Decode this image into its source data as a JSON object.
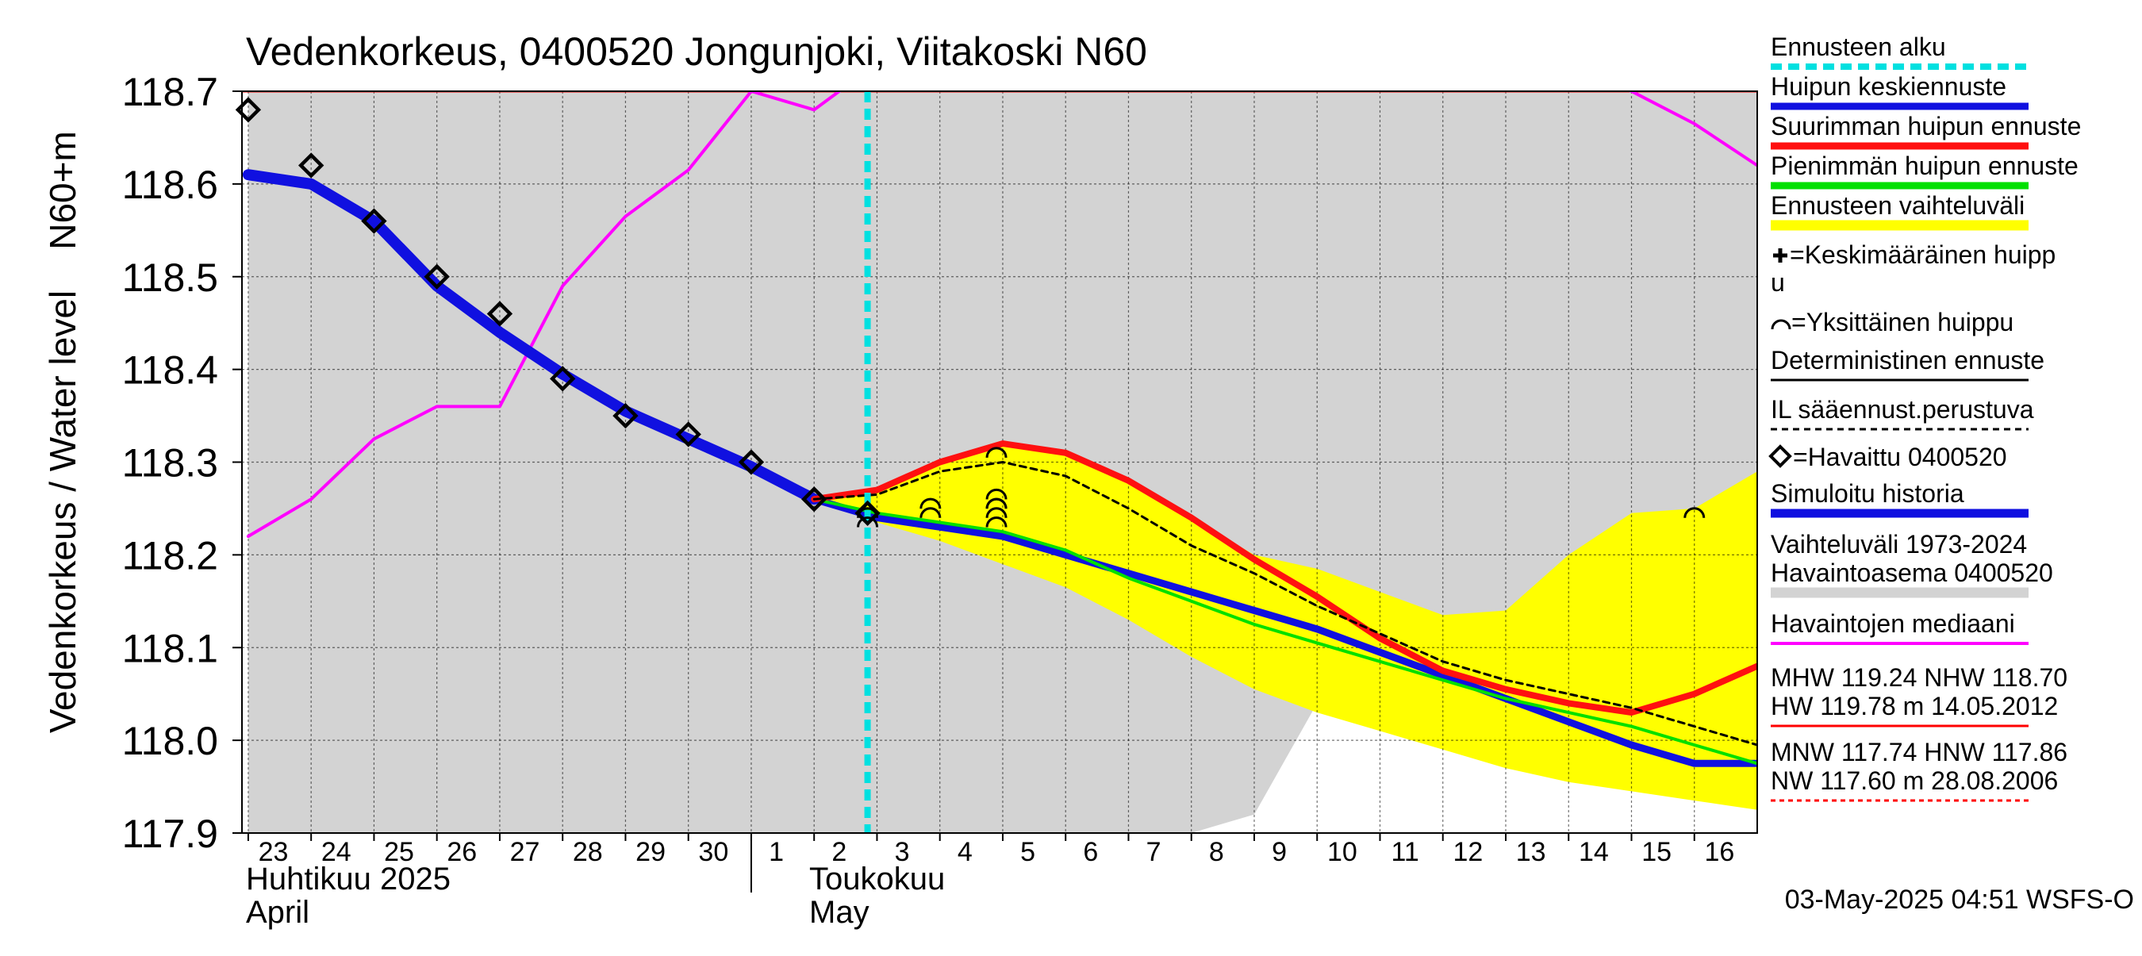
{
  "chart_data": {
    "type": "line",
    "title": "Vedenkorkeus, 0400520 Jongunjoki, Viitakoski N60",
    "ylabel_left": "Vedenkorkeus / Water level",
    "ylabel_right": "N60+m",
    "ylim": [
      117.9,
      118.7
    ],
    "yticks": [
      "117.9",
      "118.0",
      "118.1",
      "118.2",
      "118.3",
      "118.4",
      "118.5",
      "118.6",
      "118.7"
    ],
    "x_start_day": 23,
    "x_end_day": 47,
    "xticks": [
      "23",
      "24",
      "25",
      "26",
      "27",
      "28",
      "29",
      "30",
      "1",
      "2",
      "3",
      "4",
      "5",
      "6",
      "7",
      "8",
      "9",
      "10",
      "11",
      "12",
      "13",
      "14",
      "15",
      "16"
    ],
    "month_labels": {
      "april_fi": "Huhtikuu 2025",
      "april_en": "April",
      "may_fi": "Toukokuu",
      "may_en": "May"
    },
    "forecast_start": 32.85,
    "grid": true,
    "legend_position": "right",
    "legend": [
      "Ennusteen alku",
      "Huipun keskiennuste",
      "Suurimman huipun ennuste",
      "Pienimmän huipun ennuste",
      "Ennusteen vaihteluväli",
      "=Keskimääräinen huipp",
      "u",
      "=Yksittäinen huippu",
      "Deterministinen ennuste",
      "IL sääennust.perustuva",
      "=Havaittu 0400520",
      "Simuloitu historia",
      "Vaihteluväli 1973-2024",
      " Havaintoasema 0400520",
      "Havaintojen mediaani"
    ],
    "stats": {
      "line1": "MHW 119.24 NHW 118.70",
      "line2": "HW 119.78 m 14.05.2012",
      "line3": "MNW 117.74 HNW 117.86",
      "line4": "NW 117.60 m 28.08.2006"
    },
    "timestamp": "03-May-2025 04:51 WSFS-O",
    "colors": {
      "forecast_start": "#00e0e0",
      "mean_peak": "#1010e0",
      "max_peak": "#ff1010",
      "min_peak": "#00e000",
      "forecast_range": "#ffff00",
      "deterministic": "#000000",
      "observed": "#000000",
      "simulated": "#1010e0",
      "historical_range": "#d3d3d3",
      "median": "#ff00ff"
    },
    "series": [
      {
        "name": "Havaittu 0400520",
        "x": [
          23,
          24,
          25,
          26,
          27,
          28,
          29,
          30,
          31,
          32,
          32.85
        ],
        "y": [
          118.68,
          118.62,
          118.56,
          118.5,
          118.46,
          118.39,
          118.35,
          118.33,
          118.3,
          118.26,
          118.245
        ]
      },
      {
        "name": "Simuloitu historia",
        "x": [
          23,
          24,
          25,
          26,
          27,
          28,
          29,
          30,
          31,
          32
        ],
        "y": [
          118.61,
          118.6,
          118.56,
          118.49,
          118.44,
          118.395,
          118.355,
          118.325,
          118.295,
          118.26
        ]
      },
      {
        "name": "Huipun keskiennuste",
        "x": [
          32,
          33,
          34,
          35,
          36,
          37,
          38,
          39,
          40,
          41,
          42,
          43,
          44,
          45,
          46,
          47
        ],
        "y": [
          118.26,
          118.24,
          118.23,
          118.22,
          118.2,
          118.18,
          118.16,
          118.14,
          118.12,
          118.095,
          118.07,
          118.045,
          118.02,
          117.995,
          117.975,
          117.975
        ]
      },
      {
        "name": "Suurimman huipun ennuste",
        "x": [
          32,
          33,
          34,
          35,
          36,
          37,
          38,
          39,
          40,
          41,
          42,
          43,
          44,
          45,
          46,
          47
        ],
        "y": [
          118.26,
          118.27,
          118.3,
          118.32,
          118.31,
          118.28,
          118.24,
          118.195,
          118.155,
          118.11,
          118.075,
          118.055,
          118.04,
          118.03,
          118.05,
          118.08
        ]
      },
      {
        "name": "Pienimmän huipun ennuste",
        "x": [
          32,
          33,
          34,
          35,
          36,
          37,
          38,
          39,
          40,
          41,
          42,
          43,
          44,
          45,
          46,
          47
        ],
        "y": [
          118.26,
          118.245,
          118.235,
          118.225,
          118.205,
          118.175,
          118.15,
          118.125,
          118.105,
          118.085,
          118.065,
          118.045,
          118.03,
          118.015,
          117.995,
          117.975
        ]
      },
      {
        "name": "Deterministinen ennuste",
        "x": [
          32,
          33,
          34,
          35,
          36,
          37,
          38,
          39,
          40,
          41,
          42,
          43,
          44,
          45,
          46,
          47
        ],
        "y": [
          118.26,
          118.265,
          118.29,
          118.3,
          118.285,
          118.25,
          118.21,
          118.18,
          118.145,
          118.115,
          118.085,
          118.065,
          118.05,
          118.035,
          118.015,
          117.995
        ]
      },
      {
        "name": "Havaintojen mediaani",
        "x": [
          23,
          24,
          25,
          26,
          27,
          28,
          29,
          30,
          31,
          32,
          33,
          43.8,
          45,
          46,
          47
        ],
        "y": [
          118.22,
          118.26,
          118.325,
          118.36,
          118.36,
          118.49,
          118.565,
          118.615,
          118.7,
          118.68,
          118.73,
          118.73,
          118.7,
          118.665,
          118.62
        ]
      }
    ],
    "forecast_range": {
      "x": [
        32,
        33,
        34,
        35,
        36,
        37,
        38,
        39,
        40,
        41,
        42,
        43,
        44,
        45,
        46,
        47
      ],
      "upper": [
        118.26,
        118.27,
        118.3,
        118.32,
        118.31,
        118.28,
        118.24,
        118.2,
        118.185,
        118.16,
        118.135,
        118.14,
        118.2,
        118.245,
        118.25,
        118.29
      ],
      "lower": [
        118.26,
        118.235,
        118.215,
        118.19,
        118.165,
        118.13,
        118.09,
        118.055,
        118.03,
        118.01,
        117.99,
        117.97,
        117.955,
        117.945,
        117.935,
        117.925
      ]
    },
    "historical_range": {
      "x": [
        23,
        24,
        25,
        26,
        27,
        28,
        29,
        30,
        31,
        32,
        33,
        34,
        35,
        36,
        37,
        38,
        39,
        40,
        41,
        42,
        43,
        44,
        45,
        46,
        47
      ],
      "upper": [
        118.7,
        118.7,
        118.7,
        118.7,
        118.7,
        118.7,
        118.7,
        118.7,
        118.7,
        118.7,
        118.7,
        118.7,
        118.7,
        118.7,
        118.7,
        118.7,
        118.7,
        118.7,
        118.7,
        118.7,
        118.7,
        118.7,
        118.7,
        118.7,
        118.7
      ],
      "lower": [
        117.9,
        117.9,
        117.9,
        117.9,
        117.9,
        117.9,
        117.9,
        117.9,
        117.9,
        117.9,
        117.9,
        117.9,
        117.9,
        117.9,
        117.9,
        117.9,
        117.92,
        118.04,
        118.02,
        118.005,
        117.99,
        117.975,
        117.97,
        117.97,
        117.965
      ]
    },
    "single_peaks": {
      "x": [
        32.85,
        32.85,
        33.85,
        33.85,
        34.9,
        34.9,
        34.9,
        34.9,
        34.9,
        46
      ],
      "y": [
        118.245,
        118.235,
        118.255,
        118.245,
        118.265,
        118.255,
        118.245,
        118.235,
        118.255,
        118.245
      ]
    },
    "mean_peak_marker": {
      "x": [
        34.9
      ],
      "y": [
        118.31
      ]
    }
  }
}
